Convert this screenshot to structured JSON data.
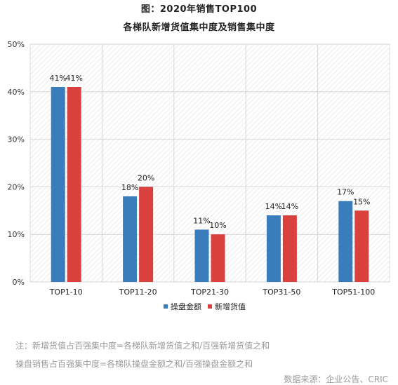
{
  "chart_data": {
    "type": "bar",
    "title": "图：2020年销售TOP100",
    "subtitle": "各梯队新增货值集中度及销售集中度",
    "categories": [
      "TOP1-10",
      "TOP11-20",
      "TOP21-30",
      "TOP31-50",
      "TOP51-100"
    ],
    "series": [
      {
        "name": "操盘金额",
        "values": [
          41,
          18,
          11,
          14,
          17
        ],
        "labels": [
          "41%",
          "18%",
          "11%",
          "14%",
          "17%"
        ]
      },
      {
        "name": "新增货值",
        "values": [
          41,
          20,
          10,
          14,
          15
        ],
        "labels": [
          "41%",
          "20%",
          "10%",
          "14%",
          "15%"
        ]
      }
    ],
    "ylim": [
      0,
      50
    ],
    "yticks": [
      "0%",
      "10%",
      "20%",
      "30%",
      "40%",
      "50%"
    ],
    "grid": true,
    "legend_position": "bottom-center",
    "colors": [
      "#3a7dbd",
      "#d9413f"
    ]
  },
  "notes": [
    "注：新增货值占百强集中度=各梯队新增货值之和/百强新增货值之和",
    "操盘销售占百强集中度=各梯队操盘金额之和/百强操盘金额之和"
  ],
  "source": "数据来源：企业公告、CRIC"
}
